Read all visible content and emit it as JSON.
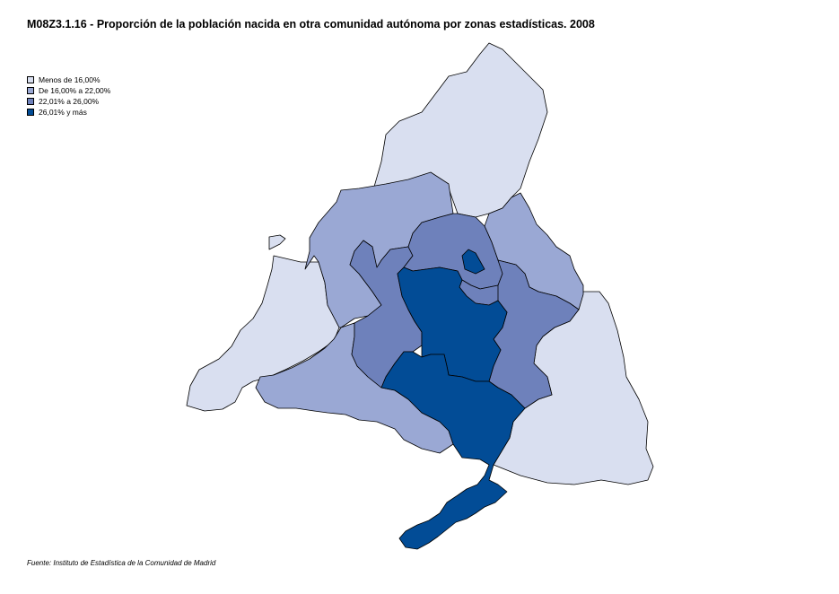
{
  "title": "M08Z3.1.16 - Proporción de la población nacida en otra comunidad autónoma por zonas estadísticas. 2008",
  "legend": [
    {
      "label": "Menos de 16,00%",
      "color": "#d9dff0"
    },
    {
      "label": "De 16,00% a 22,00%",
      "color": "#9aa8d4"
    },
    {
      "label": "22,01%  a 26,00%",
      "color": "#6e81bb"
    },
    {
      "label": "26,01% y más",
      "color": "#024c96"
    }
  ],
  "source": "Fuente: Instituto de Estadística de la Comunidad de Madrid",
  "zones": [
    {
      "name": "north",
      "class": 0
    },
    {
      "name": "west",
      "class": 0
    },
    {
      "name": "southeast",
      "class": 0
    },
    {
      "name": "northwest-ring",
      "class": 1
    },
    {
      "name": "northeast-strip",
      "class": 1
    },
    {
      "name": "southwest",
      "class": 1
    },
    {
      "name": "inner-northwest",
      "class": 2
    },
    {
      "name": "inner-north",
      "class": 2
    },
    {
      "name": "inner-east",
      "class": 2
    },
    {
      "name": "center",
      "class": 3
    },
    {
      "name": "south",
      "class": 3
    }
  ]
}
